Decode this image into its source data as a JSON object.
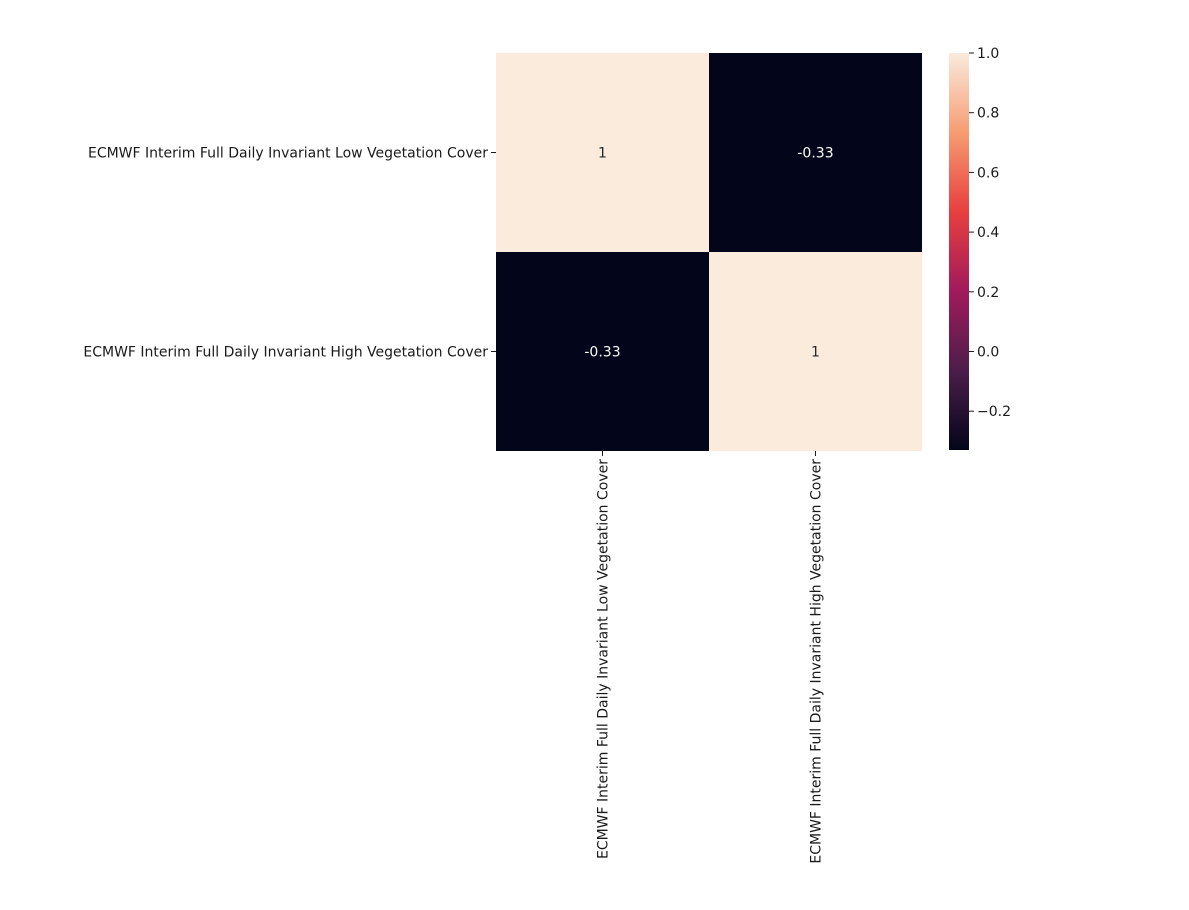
{
  "chart_data": {
    "type": "heatmap",
    "row_labels": [
      "ECMWF Interim Full Daily Invariant Low Vegetation Cover",
      "ECMWF Interim Full Daily Invariant High Vegetation Cover"
    ],
    "col_labels": [
      "ECMWF Interim Full Daily Invariant Low Vegetation Cover",
      "ECMWF Interim Full Daily Invariant High Vegetation Cover"
    ],
    "values": [
      [
        1,
        -0.33
      ],
      [
        -0.33,
        1
      ]
    ],
    "cell_labels": [
      [
        "1",
        "-0.33"
      ],
      [
        "-0.33",
        "1"
      ]
    ],
    "colorbar": {
      "min": -0.33,
      "max": 1.0,
      "ticks": [
        1.0,
        0.8,
        0.6,
        0.4,
        0.2,
        0.0,
        -0.2
      ],
      "tick_labels": [
        "1.0",
        "0.8",
        "0.6",
        "0.4",
        "0.2",
        "0.0",
        "−0.2"
      ]
    },
    "colormap": "rocket",
    "colormap_stops": [
      "#03051a",
      "#4c1d4b",
      "#a11a5b",
      "#e83f3f",
      "#f69c73",
      "#faebdd"
    ],
    "annotation_colors": {
      "on_dark": "#ffffff",
      "on_light": "#262626"
    }
  }
}
